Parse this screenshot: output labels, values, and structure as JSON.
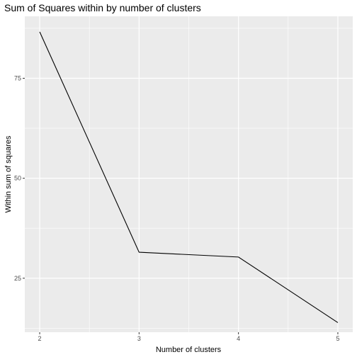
{
  "chart_data": {
    "type": "line",
    "title": "Sum of Squares within by number of clusters",
    "xlabel": "Number of clusters",
    "ylabel": "Within sum of squares",
    "x": [
      2,
      3,
      4,
      5
    ],
    "series": [
      {
        "values": [
          86.6,
          31.5,
          30.3,
          13.9
        ],
        "color": "#000000"
      }
    ],
    "xlim": [
      1.85,
      5.15
    ],
    "ylim": [
      11.5,
      90.5
    ],
    "x_ticks": [
      2,
      3,
      4,
      5
    ],
    "x_tick_labels": [
      "2",
      "3",
      "4",
      "5"
    ],
    "y_ticks": [
      25,
      50,
      75
    ],
    "y_tick_labels": [
      "25",
      "50",
      "75"
    ],
    "grid": true,
    "legend": "none",
    "panel_background": "#ebebeb",
    "grid_color": "#ffffff"
  }
}
